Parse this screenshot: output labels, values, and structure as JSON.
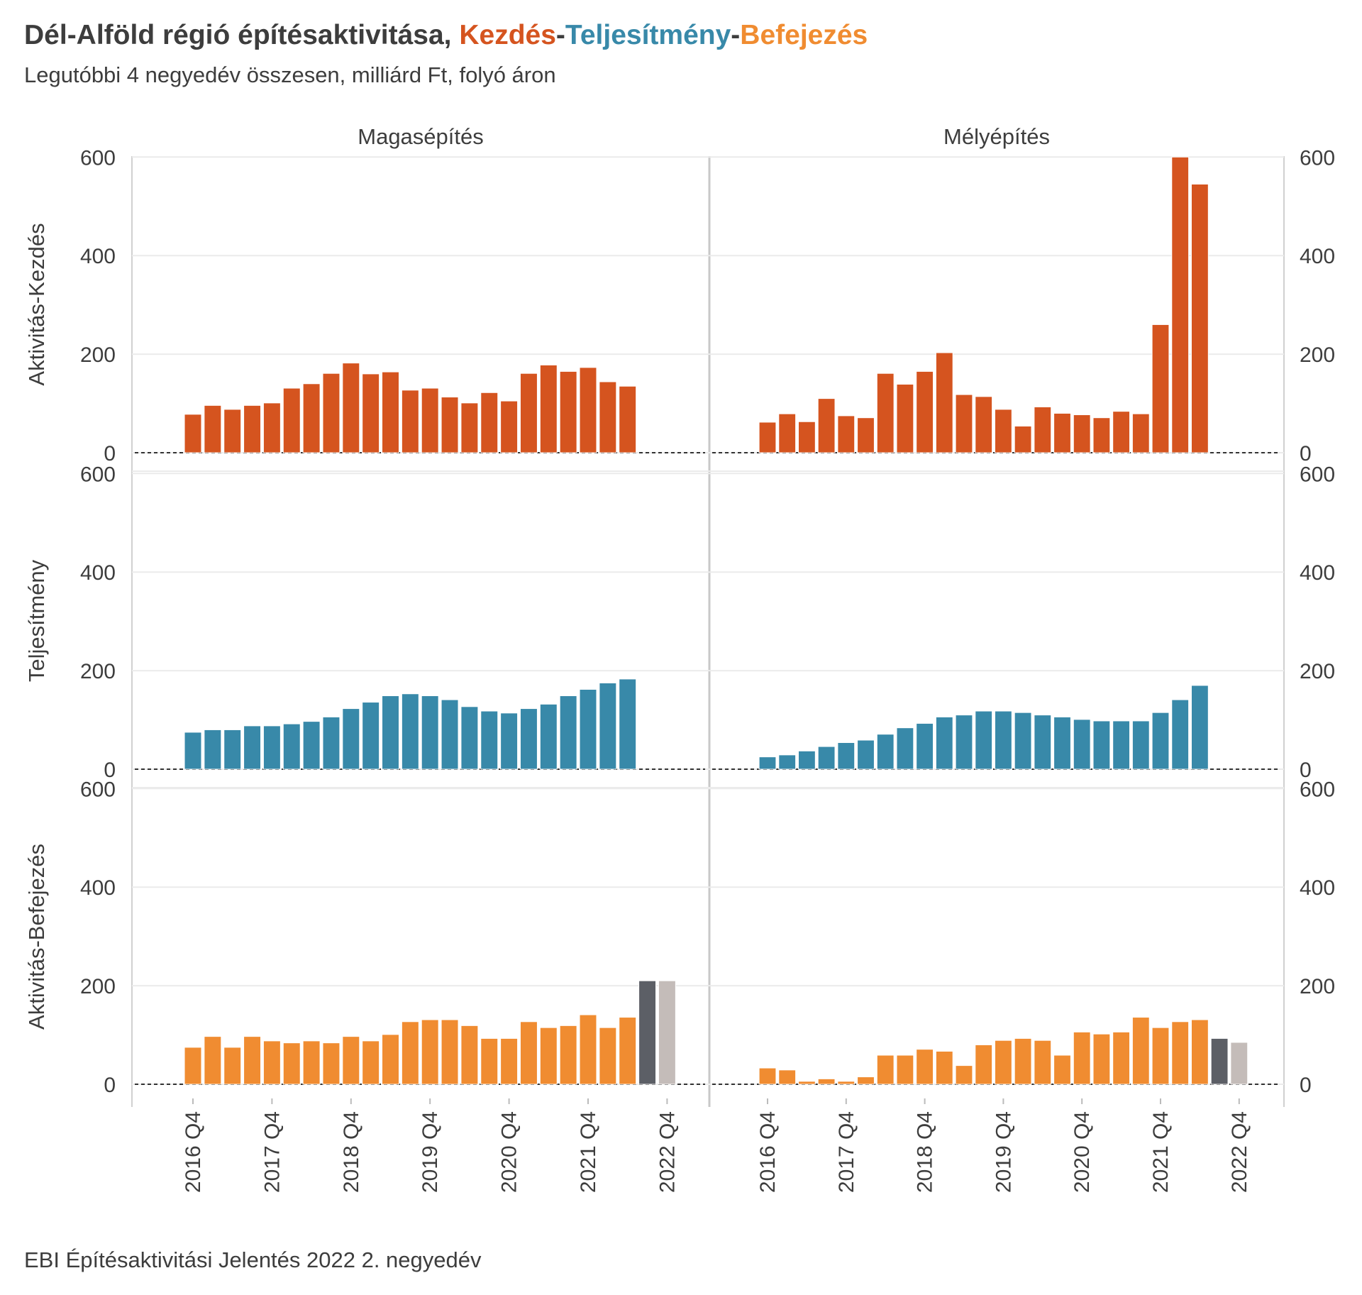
{
  "title": {
    "prefix": "Dél-Alföld régió építésaktivitása, ",
    "kezdes": "Kezdés",
    "sep1": "-",
    "teljesitmeny": "Teljesítmény",
    "sep2": "-",
    "befejezes": "Befejezés"
  },
  "subtitle": "Legutóbbi 4 negyedév összesen, milliárd Ft, folyó áron",
  "caption": "EBI Építésaktivitási Jelentés 2022 2. negyedév",
  "colors": {
    "kezdes": "#d5541f",
    "teljesitmeny": "#3889a9",
    "befejezes": "#f08c31",
    "forecast_dark": "#5c5f66",
    "forecast_light": "#c4bcb9",
    "grid": "#ebebeb",
    "axis_line": "#d0d0d0",
    "baseline": "#333333"
  },
  "chart_data": {
    "type": "bar",
    "facet_columns": [
      "Magasépítés",
      "Mélyépítés"
    ],
    "facet_rows": [
      "Aktivitás-Kezdés",
      "Teljesítmény",
      "Aktivitás-Befejezés"
    ],
    "y_ticks": [
      0,
      200,
      400,
      600
    ],
    "ylim": [
      0,
      620
    ],
    "x_ticks": [
      "2016 Q4",
      "2017 Q4",
      "2018 Q4",
      "2019 Q4",
      "2020 Q4",
      "2021 Q4",
      "2022 Q4"
    ],
    "quarters": [
      "2016 Q4",
      "2017 Q1",
      "2017 Q2",
      "2017 Q3",
      "2017 Q4",
      "2018 Q1",
      "2018 Q2",
      "2018 Q3",
      "2018 Q4",
      "2019 Q1",
      "2019 Q2",
      "2019 Q3",
      "2019 Q4",
      "2020 Q1",
      "2020 Q2",
      "2020 Q3",
      "2020 Q4",
      "2021 Q1",
      "2021 Q2",
      "2021 Q3",
      "2021 Q4",
      "2022 Q1",
      "2022 Q2",
      "2022 Q3",
      "2022 Q4"
    ],
    "panels": [
      {
        "row": "Aktivitás-Kezdés",
        "column": "Magasépítés",
        "color": "kezdes",
        "values": [
          78,
          96,
          88,
          96,
          101,
          131,
          140,
          161,
          182,
          160,
          164,
          127,
          131,
          113,
          101,
          122,
          105,
          161,
          178,
          165,
          173,
          144,
          135
        ]
      },
      {
        "row": "Aktivitás-Kezdés",
        "column": "Mélyépítés",
        "color": "kezdes",
        "values": [
          62,
          79,
          63,
          110,
          75,
          71,
          161,
          139,
          165,
          203,
          118,
          114,
          88,
          54,
          93,
          80,
          77,
          71,
          84,
          79,
          260,
          600,
          545
        ]
      },
      {
        "row": "Teljesítmény",
        "column": "Magasépítés",
        "color": "teljesitmeny",
        "values": [
          75,
          80,
          80,
          88,
          88,
          92,
          97,
          106,
          123,
          136,
          149,
          153,
          149,
          141,
          127,
          118,
          114,
          123,
          132,
          149,
          162,
          175,
          183
        ]
      },
      {
        "row": "Teljesítmény",
        "column": "Mélyépítés",
        "color": "teljesitmeny",
        "values": [
          25,
          29,
          37,
          46,
          54,
          59,
          71,
          84,
          93,
          106,
          110,
          118,
          118,
          115,
          110,
          106,
          101,
          98,
          98,
          98,
          115,
          141,
          170
        ]
      },
      {
        "row": "Aktivitás-Befejezés",
        "column": "Magasépítés",
        "color": "befejezes",
        "values": [
          75,
          97,
          75,
          97,
          88,
          84,
          88,
          84,
          97,
          88,
          101,
          127,
          131,
          131,
          119,
          93,
          93,
          127,
          115,
          119,
          141,
          115,
          136
        ],
        "forecast": [
          210,
          210
        ]
      },
      {
        "row": "Aktivitás-Befejezés",
        "column": "Mélyépítés",
        "color": "befejezes",
        "values": [
          33,
          29,
          6,
          11,
          6,
          15,
          59,
          59,
          71,
          67,
          38,
          80,
          89,
          93,
          89,
          59,
          106,
          102,
          106,
          136,
          115,
          127,
          131
        ],
        "forecast": [
          93,
          85
        ]
      }
    ]
  }
}
